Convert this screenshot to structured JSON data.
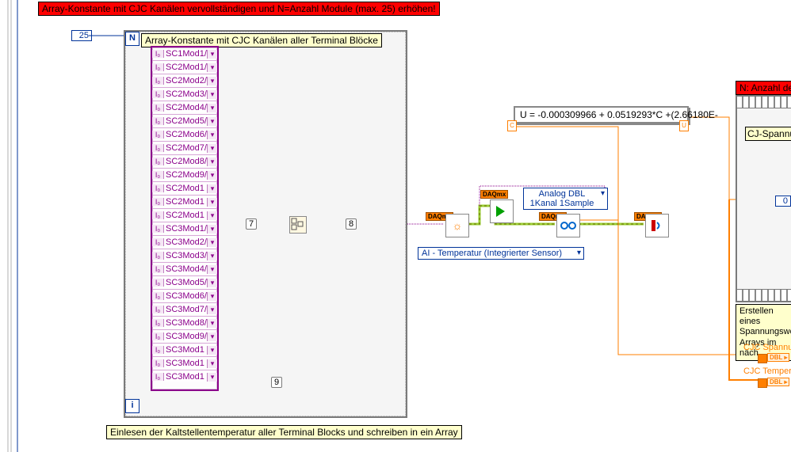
{
  "colors": {
    "red": "#ff0000",
    "yellow_comment": "#ffffcc",
    "purple": "#8b008b",
    "blue": "#003399",
    "orange": "#ff7f00",
    "loop_border": "#7a7a7a",
    "loop_bg": "#f5f5f5"
  },
  "banner_top": "Array-Konstante mit CJC Kanälen vervollständigen und N=Anzahl Module (max. 25) erhöhen!",
  "n_value": "25",
  "n_label": "N",
  "i_label": "i",
  "zero_const": "0",
  "array_title": "Array-Konstante mit CJC Kanälen aller Terminal Blöcke",
  "array_items": [
    "SC1Mod1/",
    "SC2Mod1/",
    "SC2Mod2/",
    "SC2Mod3/",
    "SC2Mod4/",
    "SC2Mod5/",
    "SC2Mod6/",
    "SC2Mod7/",
    "SC2Mod8/",
    "SC2Mod9/",
    "SC2Mod1",
    "SC2Mod1",
    "SC2Mod1",
    "SC3Mod1/",
    "SC3Mod2/",
    "SC3Mod3/",
    "SC3Mod4/",
    "SC3Mod5/",
    "SC3Mod6/",
    "SC3Mod7/",
    "SC3Mod8/",
    "SC3Mod9/",
    "SC3Mod1",
    "SC3Mod1",
    "SC3Mod1"
  ],
  "io_glyph": "I₀",
  "dd_glyph": "▾",
  "tunnel_7": "7",
  "tunnel_8": "8",
  "tunnel_9": "9",
  "daqmx_tag": "DAQmx",
  "dropdown_channel": "AI - Temperatur (Integrierter Sensor)",
  "dropdown_read": "Analog DBL",
  "dropdown_read2": "1Kanal 1Sample",
  "formula": "U = -0.000309966 + 0.0519293*C +(2.66180E-",
  "formula_left_term": "C",
  "formula_right_term": "U",
  "banner_right": "N: Anzahl der",
  "seq_item": "CJ-Spannun",
  "comment_right": "Erstellen eines\nSpannungswer\nArrays im näch",
  "cjc_spannung_label": "CJC Spannun",
  "cjc_temp_label": "CJC Temperat",
  "dbl_text": "DBL",
  "bottom_comment": "Einlesen der Kaltstellentemperatur aller Terminal Blocks und schreiben in ein Array"
}
